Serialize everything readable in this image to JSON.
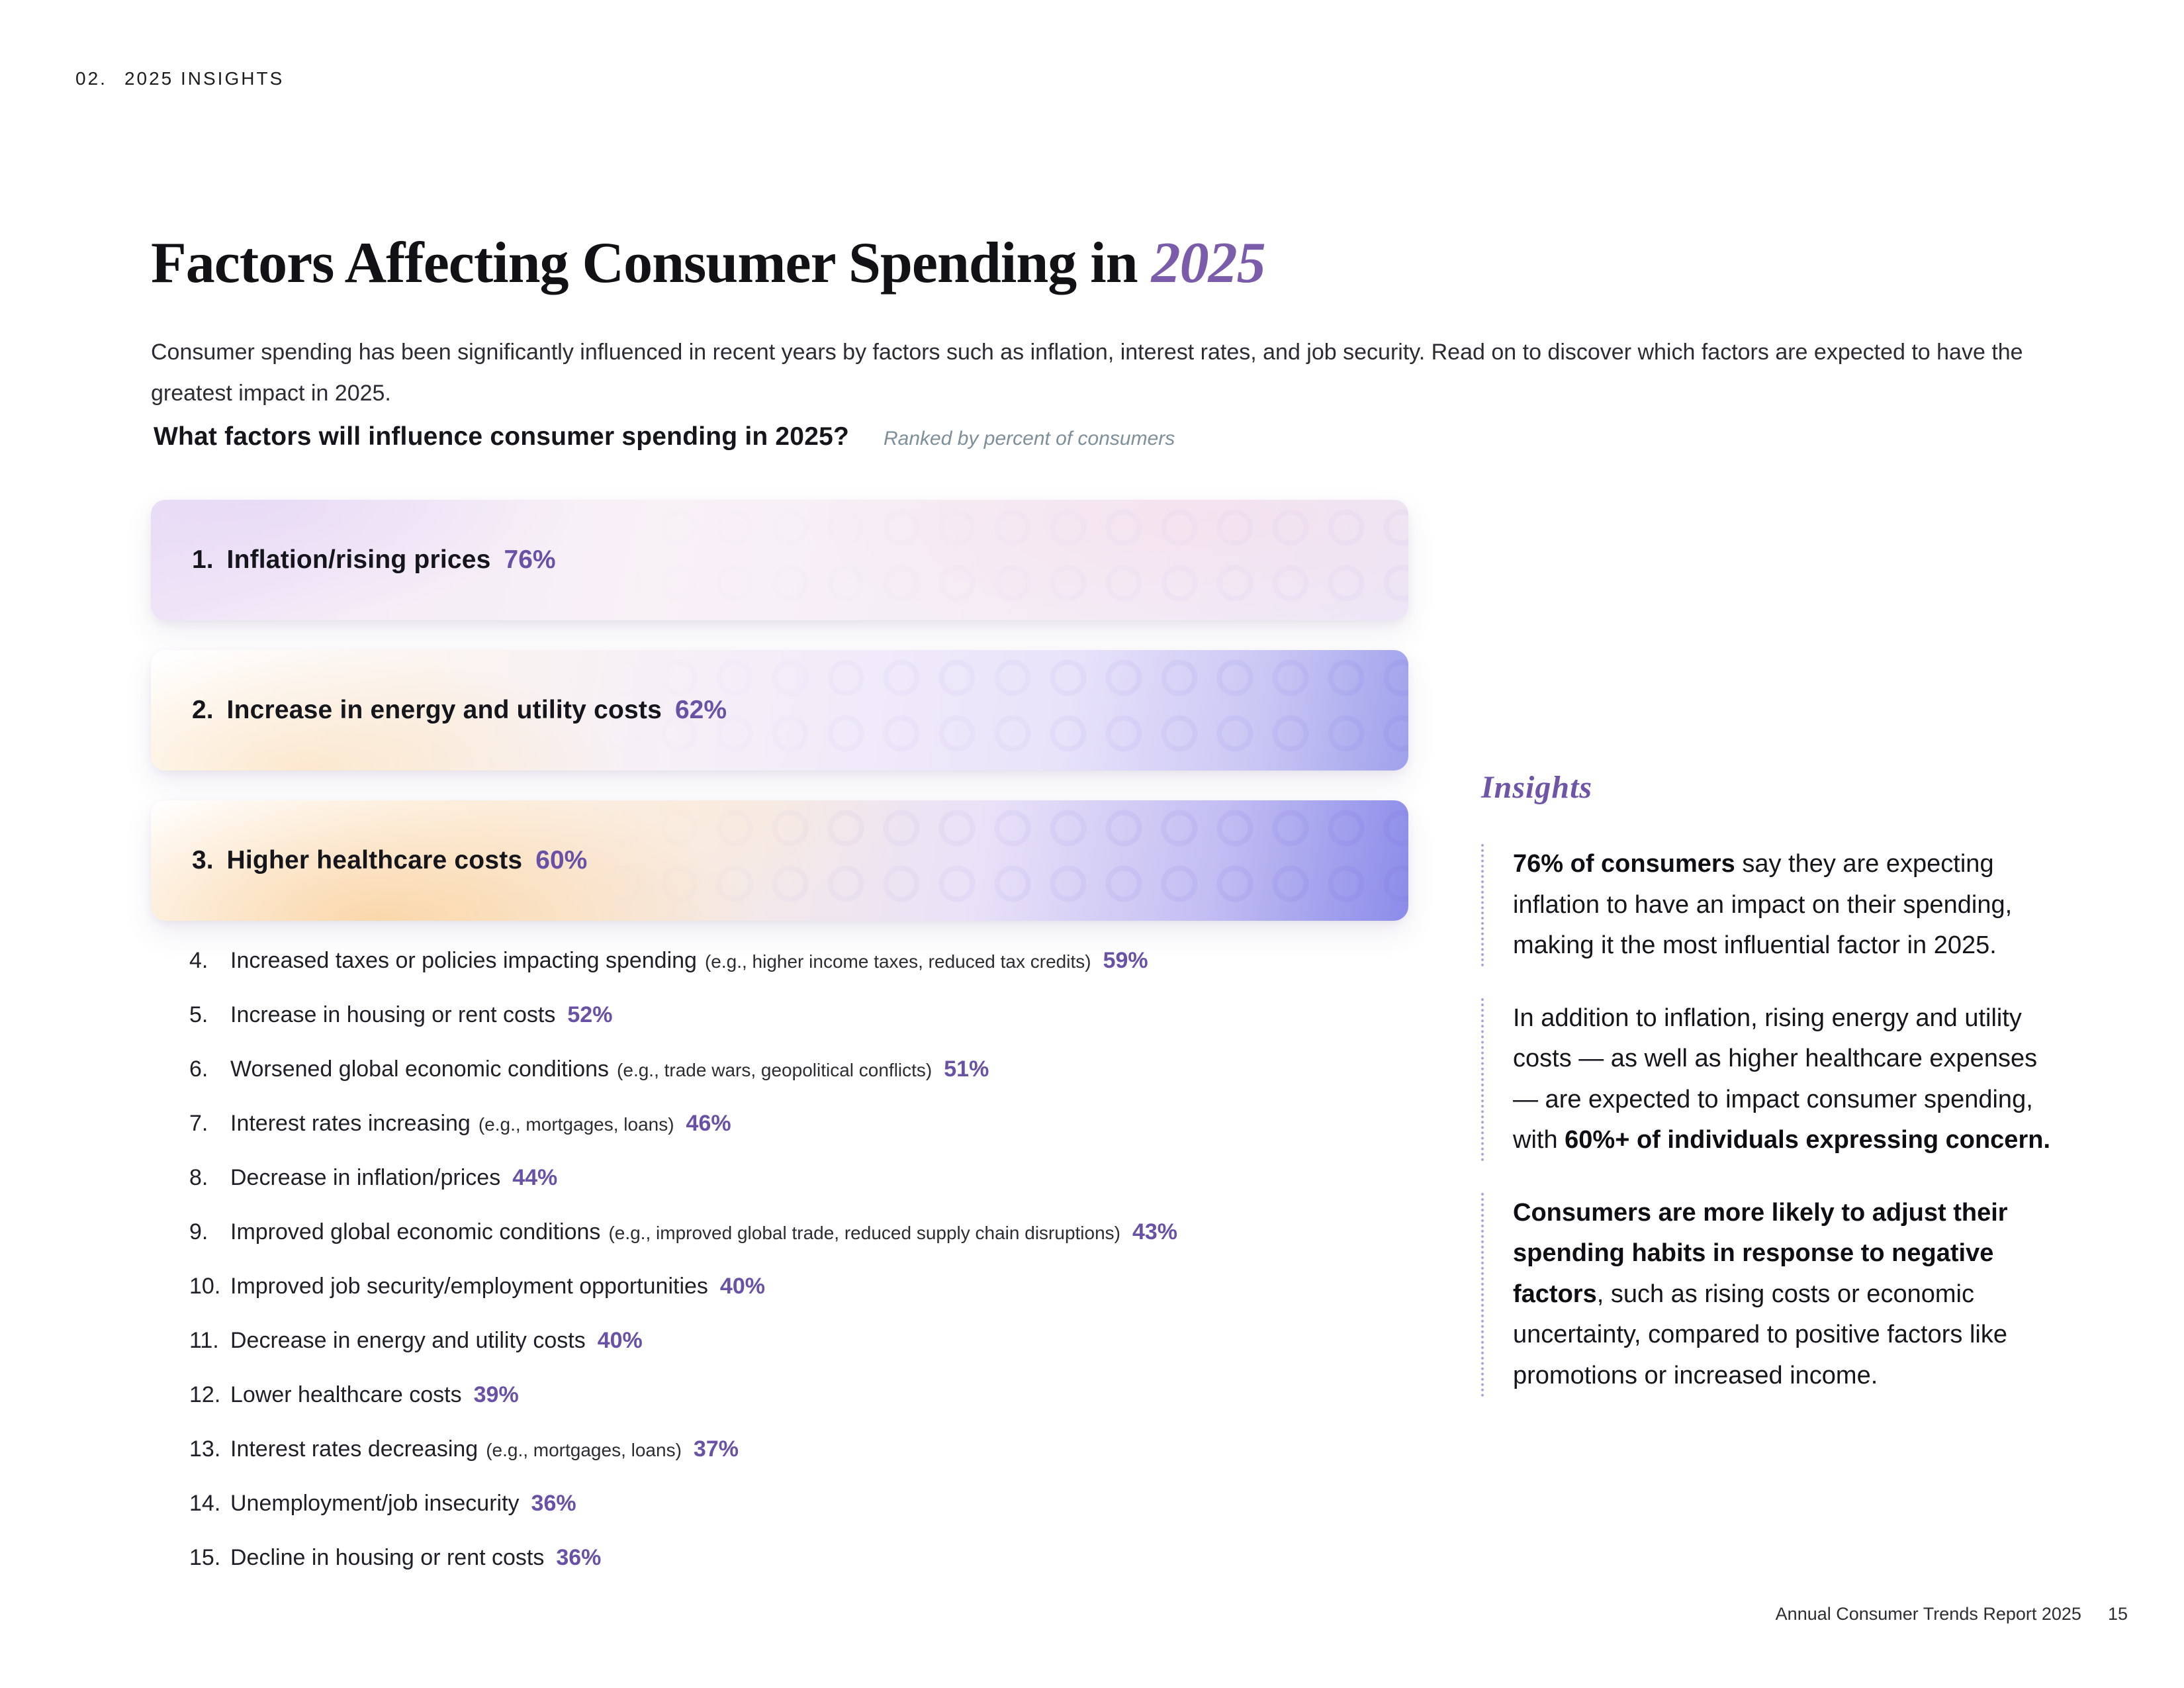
{
  "page": {
    "eyebrow": {
      "number": "02.",
      "label": "2025 INSIGHTS"
    },
    "title": {
      "text": "Factors Affecting Consumer Spending in",
      "year": "2025"
    },
    "intro": "Consumer spending has been significantly influenced in recent years by factors such as inflation, interest rates, and job security. Read on to discover which factors are expected to have the greatest impact in 2025.",
    "question": {
      "heading": "What factors will influence consumer spending in 2025?",
      "note": "Ranked by percent of consumers"
    },
    "footer": {
      "label": "Annual Consumer Trends Report 2025",
      "page_number": "15"
    }
  },
  "colors": {
    "accent_purple": "#6951a6",
    "title_year_purple": "#7b5cab",
    "insights_purple": "#6f55a8",
    "note_gray": "#7e8f99",
    "bar3_right_violet": "#8b8ce9",
    "bar_warm_peach": "#f9cd96"
  },
  "chart_data": {
    "type": "bar",
    "title": "What factors will influence consumer spending in 2025?",
    "subtitle": "Ranked by percent of consumers",
    "unit": "percent of consumers",
    "categories": [
      "Inflation/rising prices",
      "Increase in energy and utility costs",
      "Higher healthcare costs",
      "Increased taxes or policies impacting spending (e.g., higher income taxes, reduced tax credits)",
      "Increase in housing or rent costs",
      "Worsened global economic conditions (e.g., trade wars, geopolitical conflicts)",
      "Interest rates increasing (e.g., mortgages, loans)",
      "Decrease in inflation/prices",
      "Improved global economic conditions (e.g., improved global trade, reduced supply chain disruptions)",
      "Improved job security/employment opportunities",
      "Decrease in energy and utility costs",
      "Lower healthcare costs",
      "Interest rates decreasing (e.g., mortgages, loans)",
      "Unemployment/job insecurity",
      "Decline in housing or rent costs"
    ],
    "values": [
      76,
      62,
      60,
      59,
      52,
      51,
      46,
      44,
      43,
      40,
      40,
      39,
      37,
      36,
      36
    ]
  },
  "top_factors": [
    {
      "rank": "1.",
      "label": "Inflation/rising prices",
      "value": "76%"
    },
    {
      "rank": "2.",
      "label": "Increase in energy and utility costs",
      "value": "62%"
    },
    {
      "rank": "3.",
      "label": "Higher healthcare costs",
      "value": "60%"
    }
  ],
  "other_factors": [
    {
      "rank": "4.",
      "label": "Increased taxes or policies impacting spending",
      "detail": "(e.g., higher income taxes, reduced tax credits)",
      "value": "59%"
    },
    {
      "rank": "5.",
      "label": "Increase in housing or rent costs",
      "detail": "",
      "value": "52%"
    },
    {
      "rank": "6.",
      "label": "Worsened global economic conditions",
      "detail": "(e.g., trade wars, geopolitical conflicts)",
      "value": "51%"
    },
    {
      "rank": "7.",
      "label": "Interest rates increasing",
      "detail": "(e.g., mortgages, loans)",
      "value": "46%"
    },
    {
      "rank": "8.",
      "label": "Decrease in inflation/prices",
      "detail": "",
      "value": "44%"
    },
    {
      "rank": "9.",
      "label": "Improved global economic conditions",
      "detail": "(e.g., improved global trade, reduced supply chain disruptions)",
      "value": "43%"
    },
    {
      "rank": "10.",
      "label": "Improved job security/employment opportunities",
      "detail": "",
      "value": "40%"
    },
    {
      "rank": "11.",
      "label": "Decrease in energy and utility costs",
      "detail": "",
      "value": "40%"
    },
    {
      "rank": "12.",
      "label": "Lower healthcare costs",
      "detail": "",
      "value": "39%"
    },
    {
      "rank": "13.",
      "label": "Interest rates decreasing",
      "detail": "(e.g., mortgages, loans)",
      "value": "37%"
    },
    {
      "rank": "14.",
      "label": "Unemployment/job insecurity",
      "detail": "",
      "value": "36%"
    },
    {
      "rank": "15.",
      "label": "Decline in housing or rent costs",
      "detail": "",
      "value": "36%"
    }
  ],
  "insights": {
    "heading": "Insights",
    "paragraphs": [
      {
        "segments": [
          {
            "text": "76% of consumers",
            "bold": true
          },
          {
            "text": " say they are expecting inflation to have an impact on their spending, making it the most influential factor in 2025.",
            "bold": false
          }
        ]
      },
      {
        "segments": [
          {
            "text": "In addition to inflation, rising energy and utility costs — as well as higher healthcare expenses— are expected to impact consumer spending, with ",
            "bold": false
          },
          {
            "text": "60%+ of individuals expressing concern.",
            "bold": true
          }
        ]
      },
      {
        "segments": [
          {
            "text": "Consumers are more likely to adjust their spending habits in response to negative factors",
            "bold": true
          },
          {
            "text": ", such as rising costs or economic uncertainty, compared to positive factors like promotions or increased income.",
            "bold": false
          }
        ]
      }
    ]
  }
}
